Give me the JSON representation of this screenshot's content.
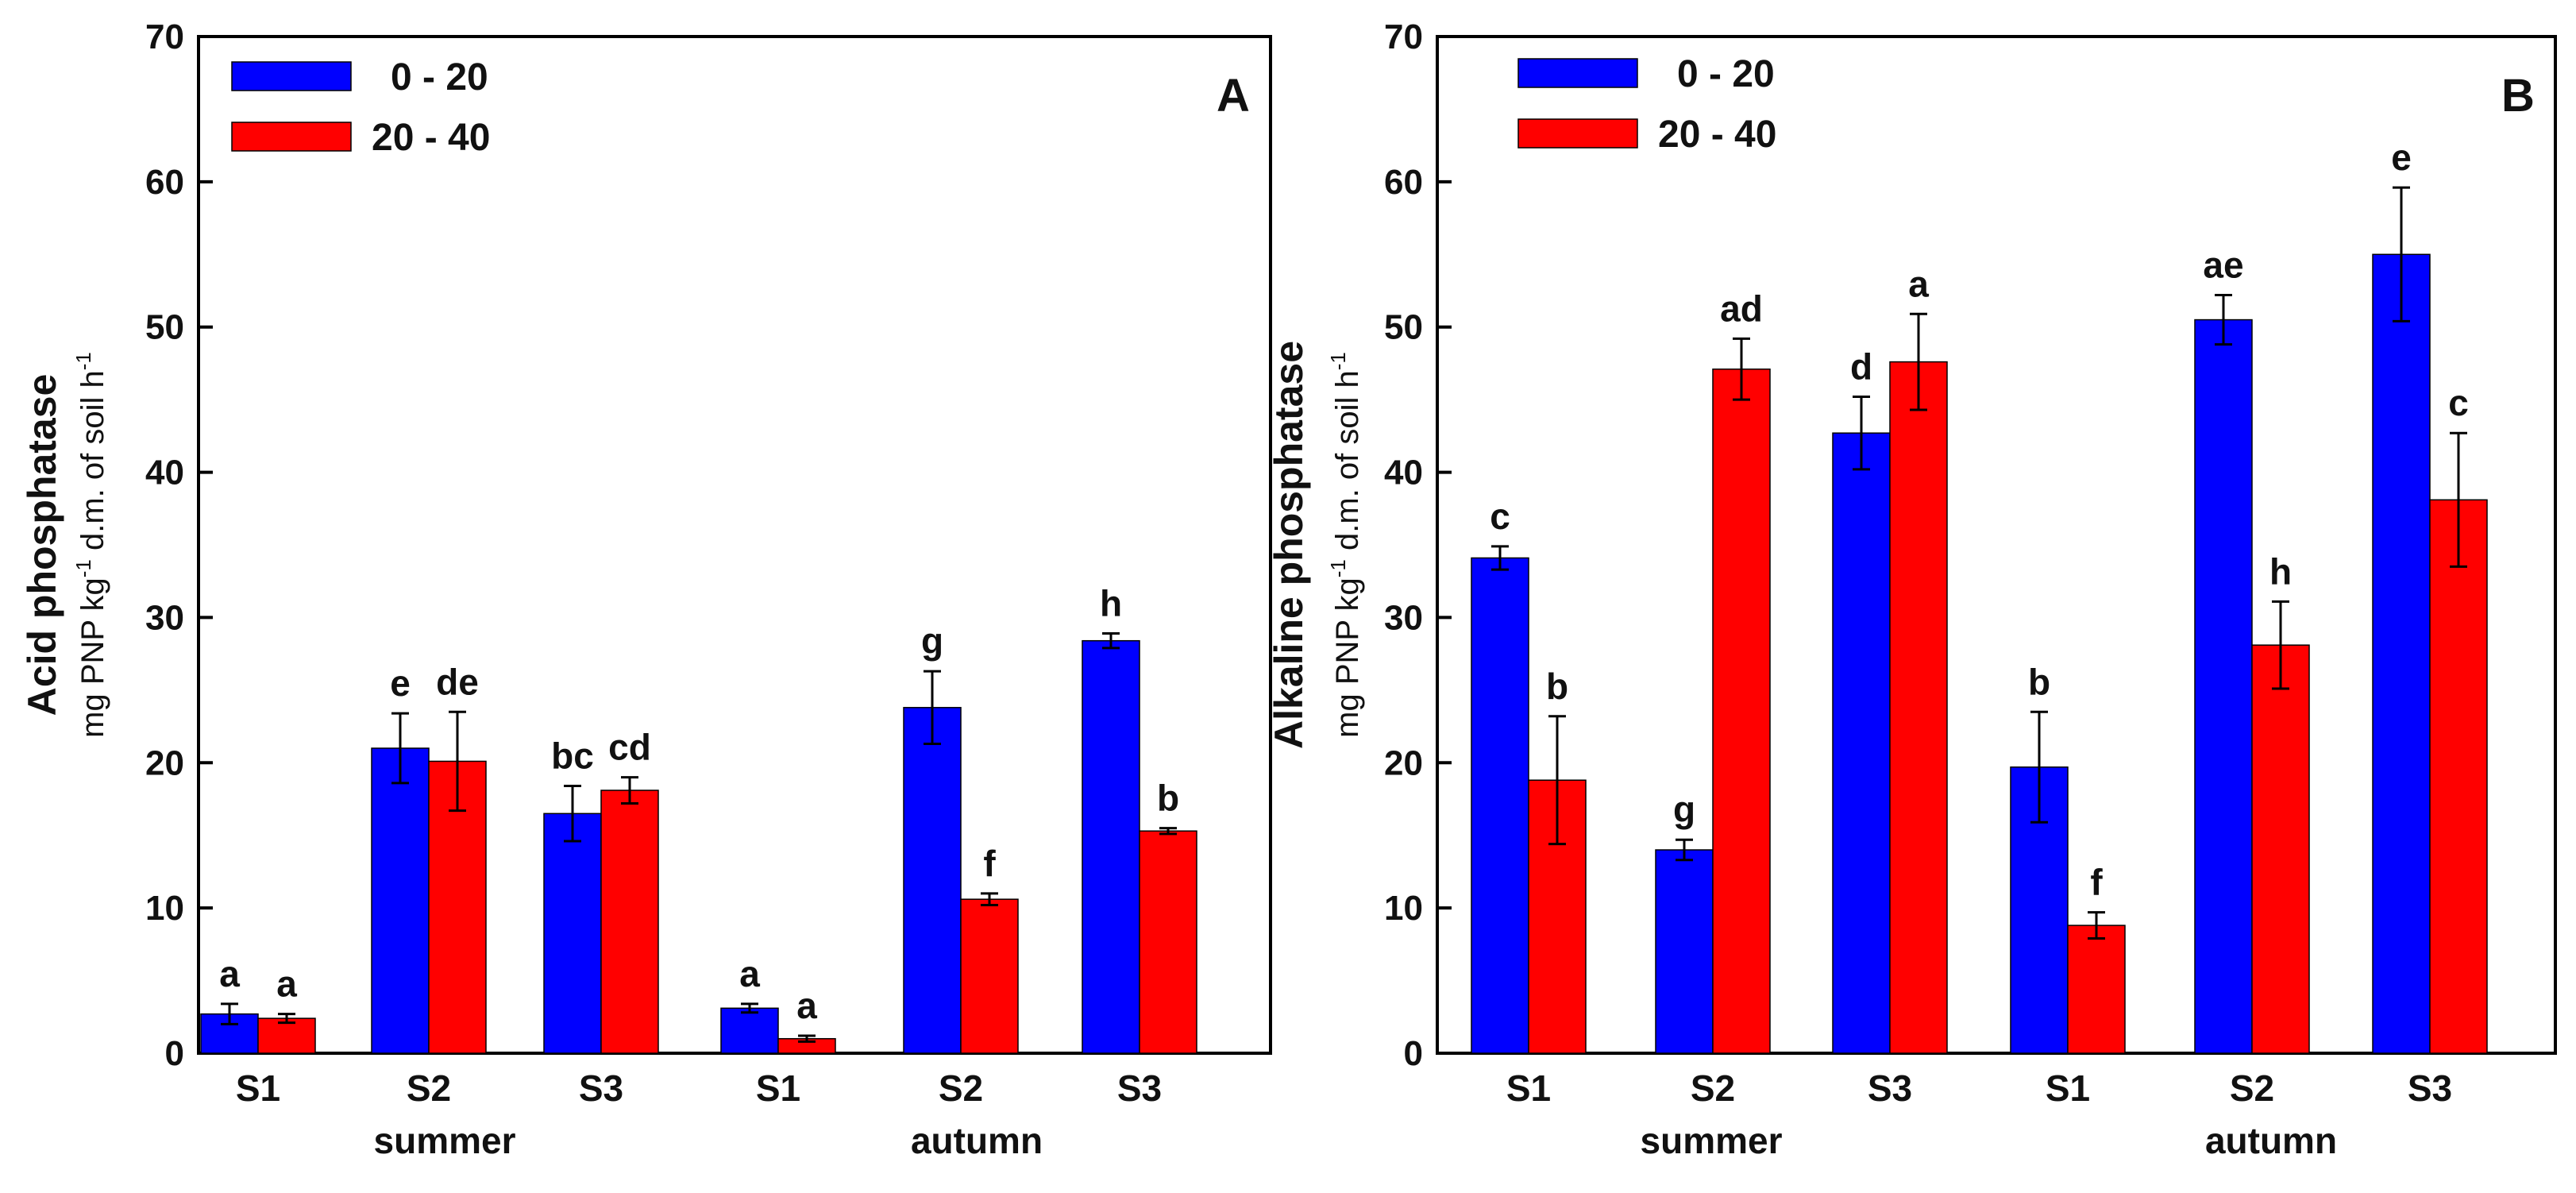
{
  "chart_data": [
    {
      "type": "bar",
      "panel": "A",
      "ylabel": "Acid phosphatase",
      "ylabel_unit_parts": [
        "mg PNP kg",
        "-1",
        " d.m. of soil h",
        "-1"
      ],
      "ylim": [
        0,
        70
      ],
      "yticks": [
        0,
        10,
        20,
        30,
        40,
        50,
        60,
        70
      ],
      "categories": [
        "S1",
        "S2",
        "S3",
        "S1",
        "S2",
        "S3"
      ],
      "groups": [
        {
          "label": "summer",
          "start": 0,
          "end": 2
        },
        {
          "label": "autumn",
          "start": 3,
          "end": 5
        }
      ],
      "series": [
        {
          "name": "0 - 20",
          "color": "#0000ff",
          "values": [
            2.7,
            21.0,
            16.5,
            3.1,
            23.8,
            28.4
          ],
          "errors": [
            0.7,
            2.4,
            1.9,
            0.3,
            2.5,
            0.5
          ],
          "letters": [
            "a",
            "e",
            "bc",
            "a",
            "g",
            "h"
          ]
        },
        {
          "name": "20 - 40",
          "color": "#ff0000",
          "values": [
            2.4,
            20.1,
            18.1,
            1.0,
            10.6,
            15.3
          ],
          "errors": [
            0.3,
            3.4,
            0.9,
            0.2,
            0.4,
            0.2
          ],
          "letters": [
            "a",
            "de",
            "cd",
            "a",
            "f",
            "b"
          ]
        }
      ]
    },
    {
      "type": "bar",
      "panel": "B",
      "ylabel": "Alkaline phosphatase",
      "ylabel_unit_parts": [
        "mg PNP kg",
        "-1",
        " d.m. of soil h",
        "-1"
      ],
      "ylim": [
        0,
        70
      ],
      "yticks": [
        0,
        10,
        20,
        30,
        40,
        50,
        60,
        70
      ],
      "categories": [
        "S1",
        "S2",
        "S3",
        "S1",
        "S2",
        "S3"
      ],
      "groups": [
        {
          "label": "summer",
          "start": 0,
          "end": 2
        },
        {
          "label": "autumn",
          "start": 3,
          "end": 5
        }
      ],
      "series": [
        {
          "name": "0 - 20",
          "color": "#0000ff",
          "values": [
            34.1,
            14.0,
            42.7,
            19.7,
            50.5,
            55.0
          ],
          "errors": [
            0.8,
            0.7,
            2.5,
            3.8,
            1.7,
            4.6
          ],
          "letters": [
            "c",
            "g",
            "d",
            "b",
            "ae",
            "e"
          ]
        },
        {
          "name": "20 - 40",
          "color": "#ff0000",
          "values": [
            18.8,
            47.1,
            47.6,
            8.8,
            28.1,
            38.1
          ],
          "errors": [
            4.4,
            2.1,
            3.3,
            0.9,
            3.0,
            4.6
          ],
          "letters": [
            "b",
            "ad",
            "a",
            "f",
            "h",
            "c"
          ]
        }
      ]
    }
  ]
}
